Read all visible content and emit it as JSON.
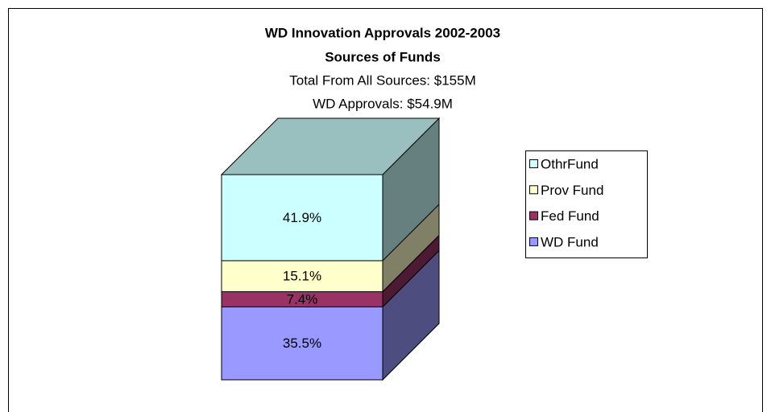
{
  "chart_data": {
    "type": "bar",
    "stacked": true,
    "three_d": true,
    "title": "WD Innovation Approvals 2002-2003",
    "subtitle": "Sources of Funds",
    "annotations": [
      "Total From All Sources: $155M",
      "WD Approvals: $54.9M"
    ],
    "categories": [
      null
    ],
    "series": [
      {
        "name": "WD Fund",
        "color": "#9999ff",
        "values": [
          35.5
        ],
        "value_labels": [
          "35.5%"
        ]
      },
      {
        "name": "Fed Fund",
        "color": "#993366",
        "values": [
          7.4
        ],
        "value_labels": [
          "7.4%"
        ]
      },
      {
        "name": "Prov Fund",
        "color": "#ffffcc",
        "values": [
          15.1
        ],
        "value_labels": [
          "15.1%"
        ]
      },
      {
        "name": "OthrFund",
        "color": "#ccffff",
        "values": [
          41.9
        ],
        "value_labels": [
          "41.9%"
        ]
      }
    ],
    "legend": "right"
  }
}
